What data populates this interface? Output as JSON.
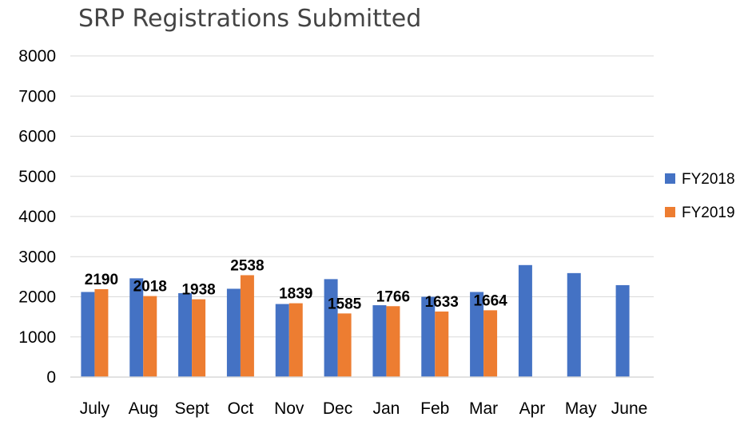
{
  "chart_data": {
    "type": "bar",
    "title": "SRP Registrations Submitted",
    "xlabel": "",
    "ylabel": "",
    "ylim": [
      0,
      8000
    ],
    "yticks": [
      0,
      1000,
      2000,
      3000,
      4000,
      5000,
      6000,
      7000,
      8000
    ],
    "grid": true,
    "legend_position": "right",
    "categories": [
      "July",
      "Aug",
      "Sept",
      "Oct",
      "Nov",
      "Dec",
      "Jan",
      "Feb",
      "Mar",
      "Apr",
      "May",
      "June"
    ],
    "series": [
      {
        "name": "FY2018",
        "color": "#4472C4",
        "values": [
          2120,
          2460,
          2090,
          2200,
          1820,
          2440,
          1790,
          2000,
          2120,
          2790,
          2590,
          2290
        ],
        "show_labels": false
      },
      {
        "name": "FY2019",
        "color": "#ED7D31",
        "values": [
          2190,
          2018,
          1938,
          2538,
          1839,
          1585,
          1766,
          1633,
          1664,
          null,
          null,
          null
        ],
        "show_labels": true
      }
    ]
  }
}
